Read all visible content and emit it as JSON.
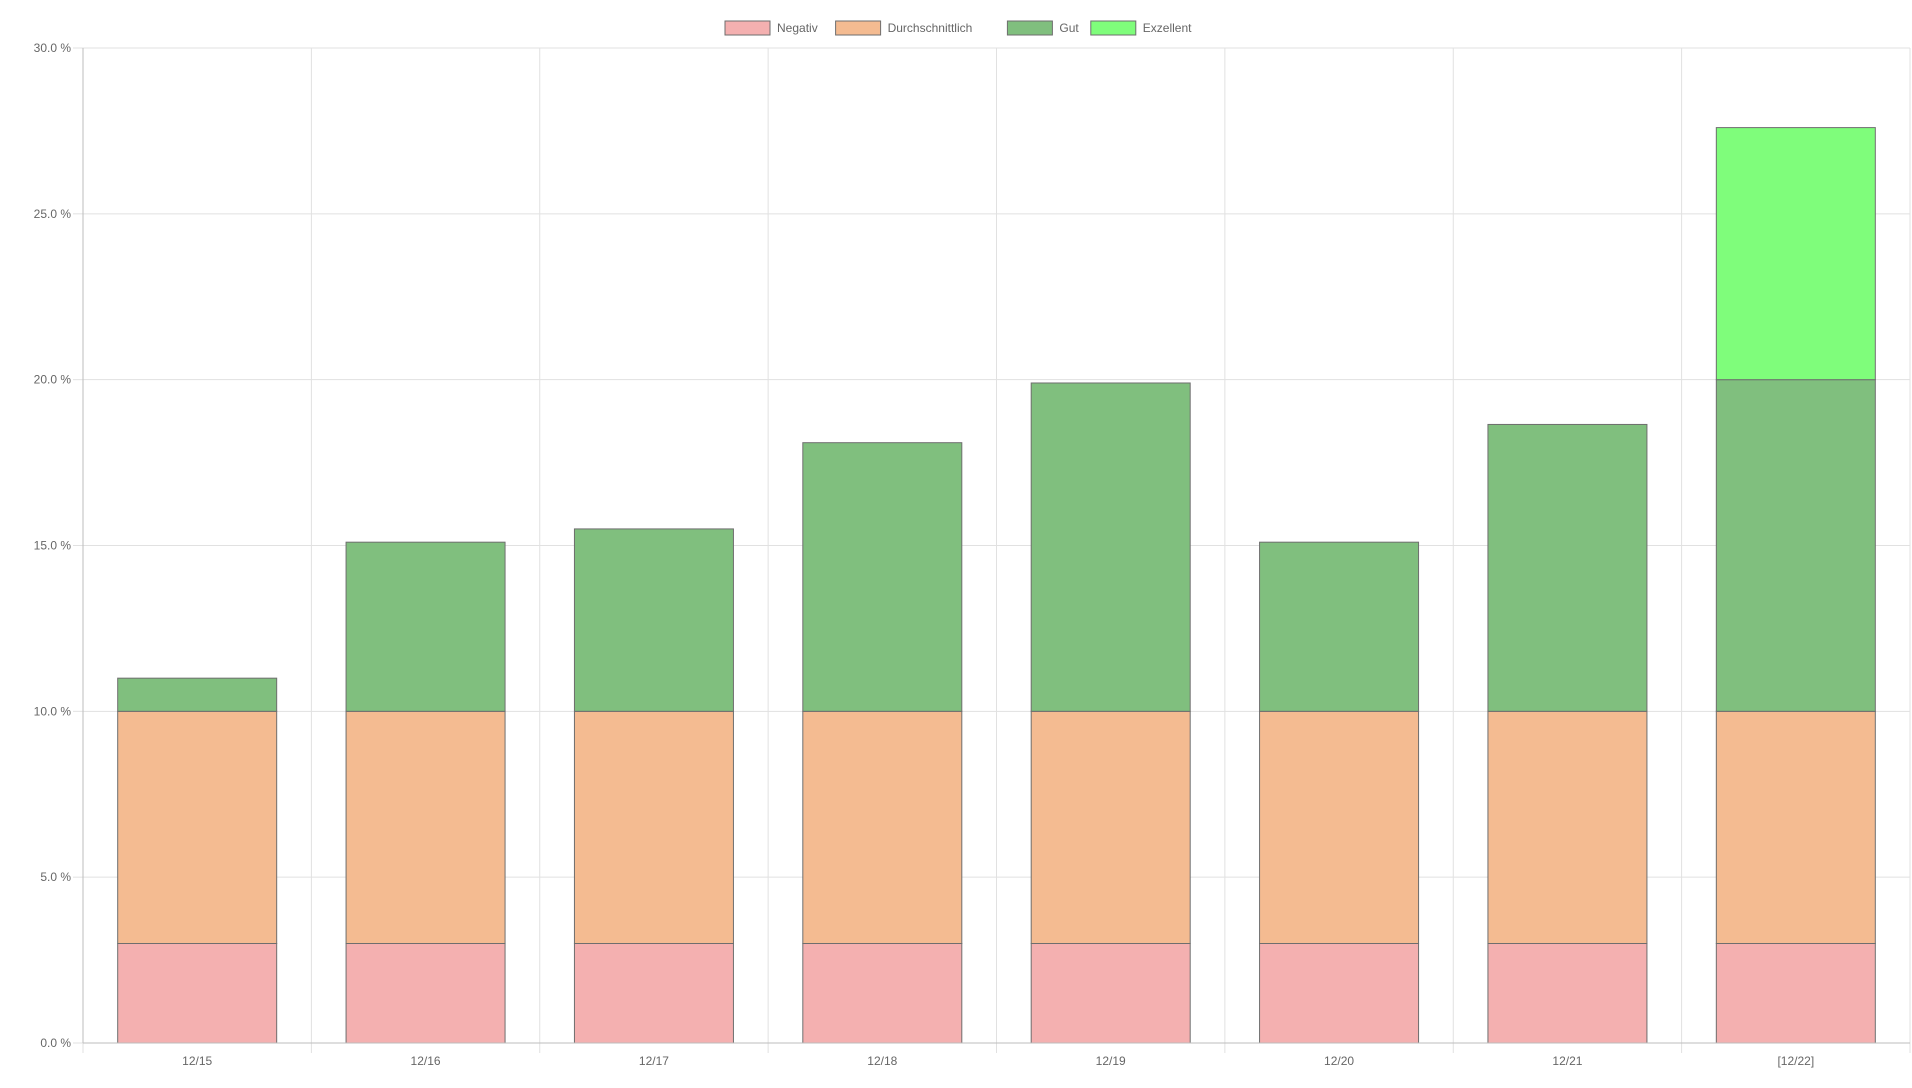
{
  "chart_data": {
    "type": "bar",
    "stacked": true,
    "categories": [
      "12/15",
      "12/16",
      "12/17",
      "12/18",
      "12/19",
      "12/20",
      "12/21",
      "[12/22]"
    ],
    "series": [
      {
        "name": "Negativ",
        "color": "#f4b0b0",
        "values": [
          3.0,
          3.0,
          3.0,
          3.0,
          3.0,
          3.0,
          3.0,
          3.0
        ]
      },
      {
        "name": "Durchschnittlich",
        "color": "#f4bb91",
        "values": [
          7.0,
          7.0,
          7.0,
          7.0,
          7.0,
          7.0,
          7.0,
          7.0
        ]
      },
      {
        "name": "Gut",
        "color": "#80bf7e",
        "values": [
          1.0,
          5.1,
          5.5,
          8.1,
          9.9,
          5.1,
          8.65,
          10.0
        ]
      },
      {
        "name": "Exzellent",
        "color": "#7ffd7b",
        "values": [
          0,
          0,
          0,
          0,
          0,
          0,
          0,
          7.6
        ]
      }
    ],
    "y_ticks": [
      "0.0 %",
      "5.0 %",
      "10.0 %",
      "15.0 %",
      "20.0 %",
      "25.0 %",
      "30.0 %"
    ],
    "ylim": [
      0,
      30
    ],
    "y_step": 5,
    "title": "",
    "xlabel": "",
    "ylabel": "",
    "legend_position": "top",
    "grid": true
  }
}
